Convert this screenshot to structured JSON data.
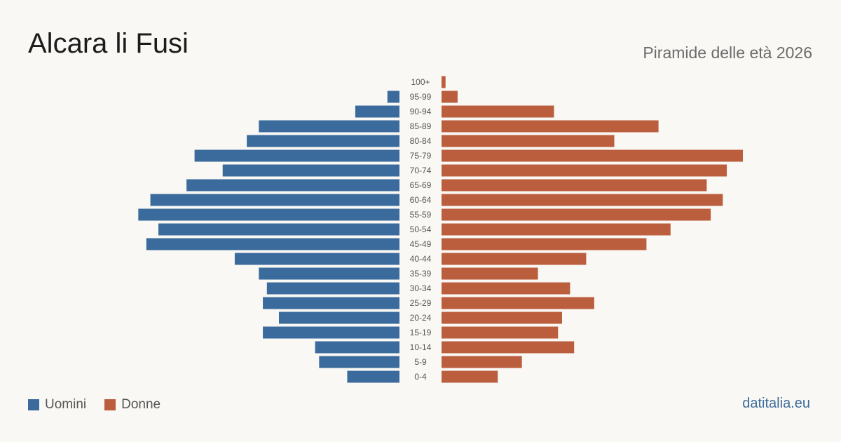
{
  "title": "Alcara li Fusi",
  "subtitle": "Piramide delle età 2026",
  "source": "datitalia.eu",
  "colors": {
    "men": "#3a6b9c",
    "women": "#bb5e3e",
    "source": "#3a6b9c",
    "tick": "#555555"
  },
  "legend": {
    "men_label": "Uomini",
    "women_label": "Donne"
  },
  "chart_data": {
    "type": "bar",
    "orientation": "horizontal-pyramid",
    "categories": [
      "100+",
      "95-99",
      "90-94",
      "85-89",
      "80-84",
      "75-79",
      "70-74",
      "65-69",
      "60-64",
      "55-59",
      "50-54",
      "45-49",
      "40-44",
      "35-39",
      "30-34",
      "25-29",
      "20-24",
      "15-19",
      "10-14",
      "5-9",
      "0-4"
    ],
    "series": [
      {
        "name": "Uomini",
        "values": [
          0,
          3,
          11,
          35,
          38,
          51,
          44,
          53,
          62,
          65,
          60,
          63,
          41,
          35,
          33,
          34,
          30,
          34,
          21,
          20,
          13
        ]
      },
      {
        "name": "Donne",
        "values": [
          1,
          4,
          28,
          54,
          43,
          75,
          71,
          66,
          70,
          67,
          57,
          51,
          36,
          24,
          32,
          38,
          30,
          29,
          33,
          20,
          14
        ]
      }
    ],
    "xlim": [
      0,
      75
    ],
    "grid": false,
    "legend_position": "bottom-left"
  }
}
